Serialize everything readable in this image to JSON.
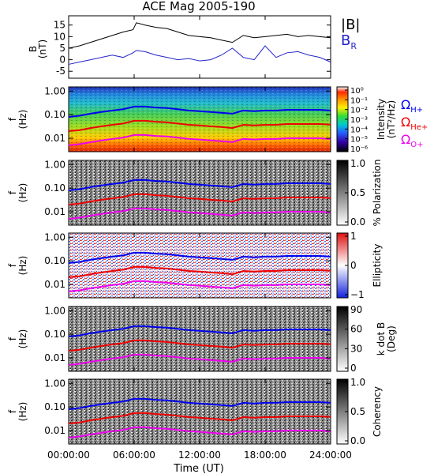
{
  "title": "ACE Mag 2005-190",
  "xlabel": "Time (UT)",
  "x_ticks": [
    "00:00:00",
    "06:00:00",
    "12:00:00",
    "18:00:00",
    "24:00:00"
  ],
  "chart_data": [
    {
      "type": "line",
      "ylabel_top": "B",
      "ylabel_bottom": "(nT)",
      "y_ticks": [
        "15",
        "10",
        "5",
        "0",
        "-5"
      ],
      "ylim": [
        -8,
        19
      ],
      "legend": [
        {
          "text": "|B|",
          "color": "#000000"
        },
        {
          "text": "B",
          "sub": "R",
          "color": "#2222cc"
        }
      ],
      "series": [
        {
          "name": "|B|",
          "color": "#000000",
          "x": [
            0,
            1,
            2,
            3,
            4,
            5,
            5.9,
            6.2,
            7,
            8,
            9,
            10,
            11,
            12,
            13,
            14,
            15,
            16,
            17,
            18,
            19,
            20,
            21,
            22,
            23,
            24
          ],
          "values": [
            5,
            6,
            7.5,
            9,
            10.5,
            12,
            13,
            16,
            15,
            14,
            13.5,
            12,
            10.5,
            10,
            9.5,
            8.5,
            7.5,
            10.5,
            9.5,
            10,
            10.5,
            11,
            10,
            10.5,
            10,
            9.5
          ]
        },
        {
          "name": "B",
          "color": "#2222cc",
          "x": [
            0,
            1,
            2,
            3,
            4,
            5,
            5.9,
            6.2,
            7,
            8,
            9,
            10,
            11,
            12,
            13,
            14,
            15,
            16,
            17,
            18,
            19,
            20,
            21,
            22,
            23,
            24
          ],
          "values": [
            -2,
            -1,
            0,
            1,
            2,
            1,
            3,
            4,
            3.5,
            2,
            1,
            0,
            0.5,
            -0.5,
            0,
            2,
            5,
            1,
            0,
            6,
            1,
            3,
            3.5,
            2,
            1,
            -1
          ]
        }
      ]
    },
    {
      "type": "heatmap",
      "ylabel_top": "f",
      "ylabel_bottom": "(Hz)",
      "y_ticks": [
        "1.00",
        "0.10",
        "0.01"
      ],
      "colorbar": {
        "type": "rainbow",
        "ticks": [
          "10⁰",
          "10⁻¹",
          "10⁻²",
          "10⁻³",
          "10⁻⁴",
          "10⁻⁵",
          "10⁻⁶"
        ],
        "label": "Intensity",
        "label2": "(nT²/Hz)"
      },
      "legend": [
        {
          "text": "Ω",
          "sub": "H+",
          "color": "#0000ee"
        },
        {
          "text": "Ω",
          "sub": "He+",
          "color": "#ee0000"
        },
        {
          "text": "Ω",
          "sub": "O+",
          "color": "#ee00ee"
        }
      ]
    },
    {
      "type": "heatmap",
      "ylabel_top": "f",
      "ylabel_bottom": "(Hz)",
      "y_ticks": [
        "1.00",
        "0.10",
        "0.01"
      ],
      "colorbar": {
        "type": "gray",
        "ticks": [
          "1.0",
          "0.5",
          "0.0"
        ],
        "label": "% Polarization"
      }
    },
    {
      "type": "heatmap",
      "ylabel_top": "f",
      "ylabel_bottom": "(Hz)",
      "y_ticks": [
        "1.00",
        "0.10",
        "0.01"
      ],
      "colorbar": {
        "type": "bwr",
        "ticks": [
          "1",
          "0",
          "−1"
        ],
        "label": "Ellipticity"
      }
    },
    {
      "type": "heatmap",
      "ylabel_top": "f",
      "ylabel_bottom": "(Hz)",
      "y_ticks": [
        "1.00",
        "0.10",
        "0.01"
      ],
      "colorbar": {
        "type": "gray",
        "ticks": [
          "90",
          "60",
          "30",
          "0"
        ],
        "label": "k dot B",
        "label2": "(Deg)"
      }
    },
    {
      "type": "heatmap",
      "ylabel_top": "f",
      "ylabel_bottom": "(Hz)",
      "y_ticks": [
        "1.00",
        "0.10",
        "0.01"
      ],
      "colorbar": {
        "type": "gray",
        "ticks": [
          "1.0",
          "0.5",
          "0.0"
        ],
        "label": "Coherency"
      }
    }
  ],
  "gyro_lines": {
    "x": [
      0,
      1,
      2,
      3,
      4,
      5,
      6,
      7,
      8,
      9,
      10,
      11,
      12,
      13,
      14,
      15,
      16,
      17,
      18,
      19,
      20,
      21,
      22,
      23,
      24
    ],
    "H+": [
      0.08,
      0.09,
      0.11,
      0.13,
      0.15,
      0.17,
      0.22,
      0.22,
      0.2,
      0.19,
      0.17,
      0.15,
      0.14,
      0.13,
      0.12,
      0.11,
      0.15,
      0.14,
      0.15,
      0.15,
      0.16,
      0.16,
      0.16,
      0.16,
      0.15
    ],
    "He+": [
      0.02,
      0.022,
      0.027,
      0.032,
      0.037,
      0.042,
      0.055,
      0.055,
      0.05,
      0.047,
      0.042,
      0.037,
      0.035,
      0.032,
      0.03,
      0.027,
      0.037,
      0.035,
      0.037,
      0.037,
      0.04,
      0.04,
      0.04,
      0.04,
      0.038
    ],
    "O+": [
      0.005,
      0.0056,
      0.0068,
      0.008,
      0.0094,
      0.0106,
      0.0138,
      0.0138,
      0.0125,
      0.0119,
      0.0106,
      0.0094,
      0.0088,
      0.0081,
      0.0075,
      0.0069,
      0.0094,
      0.0088,
      0.0094,
      0.0094,
      0.01,
      0.01,
      0.01,
      0.01,
      0.0094
    ],
    "colors": {
      "H+": "#0000ee",
      "He+": "#ee0000",
      "O+": "#ee00ee"
    }
  }
}
